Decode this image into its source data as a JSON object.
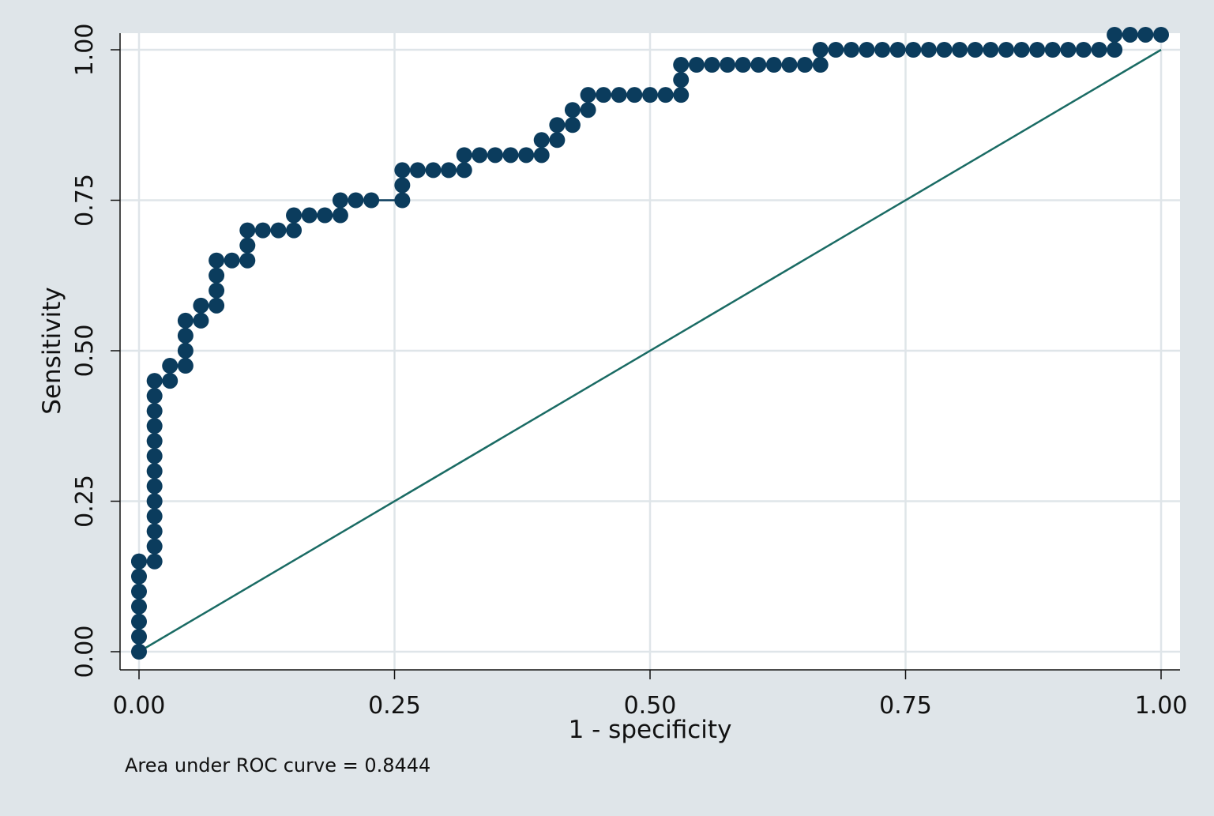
{
  "chart_data": {
    "type": "line",
    "xlabel": "1 - specificity",
    "ylabel": "Sensitivity",
    "note": "Area under ROC curve = 0.8444",
    "xlim": [
      0,
      1
    ],
    "ylim": [
      0,
      1
    ],
    "x_ticks": [
      "0.00",
      "0.25",
      "0.50",
      "0.75",
      "1.00"
    ],
    "y_ticks": [
      "0.00",
      "0.25",
      "0.50",
      "0.75",
      "1.00"
    ],
    "grid": true,
    "legend": "none",
    "colors": {
      "background": "#dfe5e9",
      "plot_background": "#ffffff",
      "grid": "#dfe5e9",
      "roc_curve": "#0b3c5d",
      "reference_line": "#1a6b64"
    },
    "series": [
      {
        "x": [
          0,
          0,
          0,
          0,
          0,
          0,
          0,
          0,
          0.0152,
          0.0152,
          0.0152,
          0.0152,
          0.0152,
          0.0152,
          0.0152,
          0.0152,
          0.0152,
          0.0152,
          0.0152,
          0.0152,
          0.0152,
          0.0303,
          0.0303,
          0.0455,
          0.0455,
          0.0455,
          0.0455,
          0.0606,
          0.0606,
          0.0758,
          0.0758,
          0.0758,
          0.0758,
          0.0909,
          0.1061,
          0.1061,
          0.1061,
          0.1212,
          0.1364,
          0.1515,
          0.1515,
          0.1667,
          0.1818,
          0.197,
          0.197,
          0.2121,
          0.2273,
          0.2576,
          0.2576,
          0.2576,
          0.2727,
          0.2879,
          0.303,
          0.3182,
          0.3182,
          0.3333,
          0.3485,
          0.3636,
          0.3788,
          0.3939,
          0.3939,
          0.4091,
          0.4091,
          0.4242,
          0.4242,
          0.4394,
          0.4394,
          0.4545,
          0.4697,
          0.4848,
          0.5,
          0.5152,
          0.5303,
          0.5303,
          0.5303,
          0.5455,
          0.5606,
          0.5758,
          0.5909,
          0.6061,
          0.6212,
          0.6364,
          0.6515,
          0.6667,
          0.6667,
          0.6818,
          0.697,
          0.7121,
          0.7273,
          0.7424,
          0.7576,
          0.7727,
          0.7879,
          0.803,
          0.8182,
          0.8333,
          0.8485,
          0.8636,
          0.8788,
          0.8939,
          0.9091,
          0.9242,
          0.9394,
          0.9545,
          0.9545,
          0.9697,
          0.9848,
          1
        ],
        "values": [
          0,
          0.025,
          0.05,
          0.075,
          0.1,
          0.125,
          0.15,
          0.15,
          0.15,
          0.175,
          0.2,
          0.225,
          0.25,
          0.275,
          0.3,
          0.325,
          0.35,
          0.375,
          0.4,
          0.425,
          0.45,
          0.45,
          0.475,
          0.475,
          0.5,
          0.525,
          0.55,
          0.55,
          0.575,
          0.575,
          0.6,
          0.625,
          0.65,
          0.65,
          0.65,
          0.675,
          0.7,
          0.7,
          0.7,
          0.7,
          0.725,
          0.725,
          0.725,
          0.725,
          0.75,
          0.75,
          0.75,
          0.75,
          0.775,
          0.8,
          0.8,
          0.8,
          0.8,
          0.8,
          0.825,
          0.825,
          0.825,
          0.825,
          0.825,
          0.825,
          0.85,
          0.85,
          0.875,
          0.875,
          0.9,
          0.9,
          0.925,
          0.925,
          0.925,
          0.925,
          0.925,
          0.925,
          0.925,
          0.95,
          0.975,
          0.975,
          0.975,
          0.975,
          0.975,
          0.975,
          0.975,
          0.975,
          0.975,
          0.975,
          1,
          1,
          1,
          1,
          1,
          1,
          1,
          1,
          1,
          1,
          1,
          1,
          1,
          1,
          1,
          1,
          1,
          1,
          1,
          1,
          1.025,
          1.025,
          1.025,
          1.025
        ]
      },
      {
        "x": [
          0,
          1
        ],
        "values": [
          0,
          1
        ]
      }
    ]
  }
}
